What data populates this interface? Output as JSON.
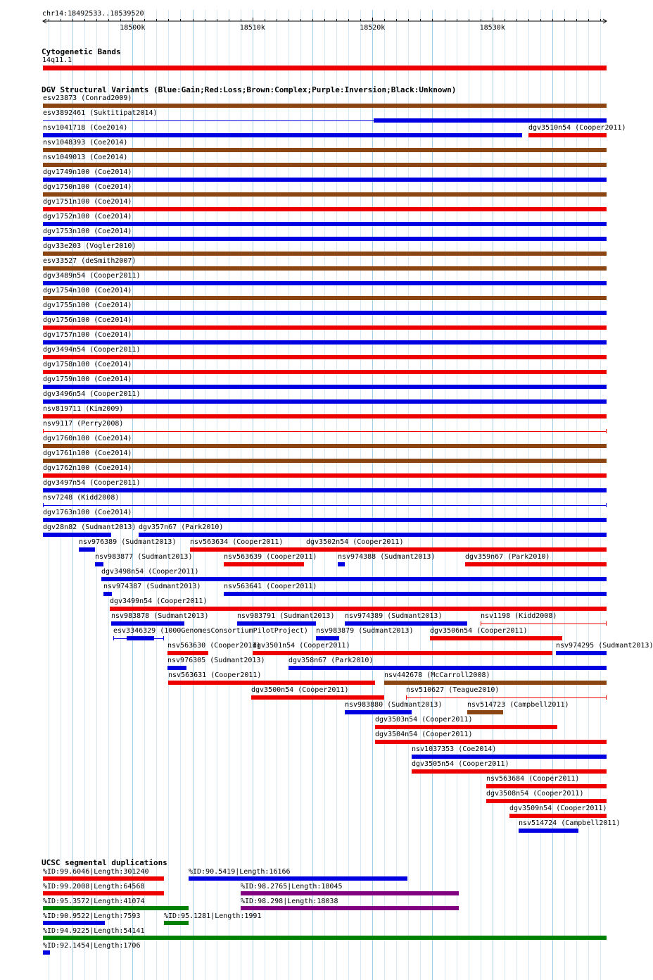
{
  "locus": "chr14:18492533..18539520",
  "ruler": {
    "start": 18492533,
    "end": 18539520,
    "ticks": [
      {
        "pos": 18500000,
        "label": "18500k"
      },
      {
        "pos": 18510000,
        "label": "18510k"
      },
      {
        "pos": 18520000,
        "label": "18520k"
      },
      {
        "pos": 18530000,
        "label": "18530k"
      }
    ]
  },
  "colors": {
    "gain": "#0000e0",
    "loss": "#ee0000",
    "complex": "#8b4513",
    "inversion": "#800080",
    "unknown": "#000000",
    "grid_major": "#a8cfe8",
    "grid_minor": "#d6e9f5",
    "segdup_gray": "#808080",
    "segdup_yellow": "#e0d000",
    "segdup_orange": "#ff8c00",
    "segdup_green": "#008000"
  },
  "tracks": {
    "cytoband": {
      "title": "Cytogenetic Bands",
      "features": [
        {
          "label": "14q11.1",
          "start": 18492533,
          "end": 18539520,
          "color": "loss"
        }
      ]
    },
    "dgv": {
      "title": "DGV Structural Variants (Blue:Gain;Red:Loss;Brown:Complex;Purple:Inversion;Black:Unknown)",
      "features": [
        {
          "label": "esv23873 (Conrad2009)",
          "start": 18492533,
          "end": 18539520,
          "color": "complex"
        },
        {
          "label": "esv3892461 (Suktitipat2014)",
          "start": 18492533,
          "end": 18539520,
          "color": "gain",
          "thick_start": 18520100,
          "thick_end": 18539520
        },
        {
          "label": "nsv1041718 (Coe2014)",
          "start": 18492533,
          "end": 18532500,
          "color": "gain"
        },
        {
          "label": "dgv3510n54 (Cooper2011)",
          "start": 18533000,
          "end": 18539520,
          "color": "loss"
        },
        {
          "label": "nsv1048393 (Coe2014)",
          "start": 18492533,
          "end": 18539520,
          "color": "complex"
        },
        {
          "label": "nsv1049013 (Coe2014)",
          "start": 18492533,
          "end": 18539520,
          "color": "complex"
        },
        {
          "label": "dgv1749n100 (Coe2014)",
          "start": 18492533,
          "end": 18539520,
          "color": "gain"
        },
        {
          "label": "dgv1750n100 (Coe2014)",
          "start": 18492533,
          "end": 18539520,
          "color": "complex"
        },
        {
          "label": "dgv1751n100 (Coe2014)",
          "start": 18492533,
          "end": 18539520,
          "color": "loss"
        },
        {
          "label": "dgv1752n100 (Coe2014)",
          "start": 18492533,
          "end": 18539520,
          "color": "gain"
        },
        {
          "label": "dgv1753n100 (Coe2014)",
          "start": 18492533,
          "end": 18539520,
          "color": "gain"
        },
        {
          "label": "dgv33e203 (Vogler2010)",
          "start": 18492533,
          "end": 18539520,
          "color": "complex"
        },
        {
          "label": "esv33527 (deSmith2007)",
          "start": 18492533,
          "end": 18539520,
          "color": "complex"
        },
        {
          "label": "dgv3489n54 (Cooper2011)",
          "start": 18492533,
          "end": 18539520,
          "color": "gain"
        },
        {
          "label": "dgv1754n100 (Coe2014)",
          "start": 18492533,
          "end": 18539520,
          "color": "complex"
        },
        {
          "label": "dgv1755n100 (Coe2014)",
          "start": 18492533,
          "end": 18539520,
          "color": "gain"
        },
        {
          "label": "dgv1756n100 (Coe2014)",
          "start": 18492533,
          "end": 18539520,
          "color": "loss"
        },
        {
          "label": "dgv1757n100 (Coe2014)",
          "start": 18492533,
          "end": 18539520,
          "color": "gain"
        },
        {
          "label": "dgv3494n54 (Cooper2011)",
          "start": 18492533,
          "end": 18539520,
          "color": "loss"
        },
        {
          "label": "dgv1758n100 (Coe2014)",
          "start": 18492533,
          "end": 18539520,
          "color": "loss"
        },
        {
          "label": "dgv1759n100 (Coe2014)",
          "start": 18492533,
          "end": 18539520,
          "color": "gain"
        },
        {
          "label": "dgv3496n54 (Cooper2011)",
          "start": 18492533,
          "end": 18539520,
          "color": "gain"
        },
        {
          "label": "nsv819711 (Kim2009)",
          "start": 18492533,
          "end": 18539520,
          "color": "loss"
        },
        {
          "label": "nsv9117 (Perry2008)",
          "start": 18492533,
          "end": 18539520,
          "color": "loss",
          "thin": true
        },
        {
          "label": "dgv1760n100 (Coe2014)",
          "start": 18492533,
          "end": 18539520,
          "color": "complex"
        },
        {
          "label": "dgv1761n100 (Coe2014)",
          "start": 18492533,
          "end": 18539520,
          "color": "complex"
        },
        {
          "label": "dgv1762n100 (Coe2014)",
          "start": 18492533,
          "end": 18539520,
          "color": "loss"
        },
        {
          "label": "dgv3497n54 (Cooper2011)",
          "start": 18492533,
          "end": 18539520,
          "color": "gain"
        },
        {
          "label": "nsv7248 (Kidd2008)",
          "start": 18492533,
          "end": 18539520,
          "color": "gain",
          "thin": true
        },
        {
          "label": "dgv1763n100 (Coe2014)",
          "start": 18492533,
          "end": 18539520,
          "color": "gain"
        },
        {
          "label": "dgv28n82 (Sudmant2013)",
          "start": 18492533,
          "end": 18498200,
          "color": "gain"
        },
        {
          "label": "dgv357n67 (Park2010)",
          "start": 18500500,
          "end": 18539520,
          "color": "gain"
        },
        {
          "label": "nsv976389 (Sudmant2013)",
          "start": 18495500,
          "end": 18496900,
          "color": "gain"
        },
        {
          "label": "nsv563634 (Cooper2011)",
          "start": 18504800,
          "end": 18514600,
          "color": "loss"
        },
        {
          "label": "dgv3502n54 (Cooper2011)",
          "start": 18514500,
          "end": 18539520,
          "color": "loss"
        },
        {
          "label": "nsv983877 (Sudmant2013)",
          "start": 18496900,
          "end": 18497600,
          "color": "gain"
        },
        {
          "label": "nsv563639 (Cooper2011)",
          "start": 18507600,
          "end": 18514300,
          "color": "loss"
        },
        {
          "label": "nsv974388 (Sudmant2013)",
          "start": 18517100,
          "end": 18517700,
          "color": "gain"
        },
        {
          "label": "dgv359n67 (Park2010)",
          "start": 18527700,
          "end": 18539520,
          "color": "loss"
        },
        {
          "label": "dgv3498n54 (Cooper2011)",
          "start": 18497400,
          "end": 18539520,
          "color": "gain"
        },
        {
          "label": "nsv974387 (Sudmant2013)",
          "start": 18497600,
          "end": 18498300,
          "color": "gain"
        },
        {
          "label": "nsv563641 (Cooper2011)",
          "start": 18507600,
          "end": 18539520,
          "color": "gain"
        },
        {
          "label": "dgv3499n54 (Cooper2011)",
          "start": 18498100,
          "end": 18539520,
          "color": "loss"
        },
        {
          "label": "nsv983878 (Sudmant2013)",
          "start": 18498200,
          "end": 18504300,
          "color": "gain"
        },
        {
          "label": "nsv983791 (Sudmant2013)",
          "start": 18508700,
          "end": 18515300,
          "color": "gain"
        },
        {
          "label": "nsv974389 (Sudmant2013)",
          "start": 18517700,
          "end": 18527900,
          "color": "gain"
        },
        {
          "label": "nsv1198 (Kidd2008)",
          "start": 18529000,
          "end": 18539520,
          "color": "loss",
          "thin": true
        },
        {
          "label": "esv3346329 (1000GenomesConsortiumPilotProject)",
          "start": 18498400,
          "end": 18502600,
          "color": "gain",
          "thin": true,
          "thick_start": 18499500,
          "thick_end": 18501800
        },
        {
          "label": "nsv983879 (Sudmant2013)",
          "start": 18515300,
          "end": 18517200,
          "color": "gain"
        },
        {
          "label": "dgv3506n54 (Cooper2011)",
          "start": 18524800,
          "end": 18535800,
          "color": "loss"
        },
        {
          "label": "nsv563630 (Cooper2011)",
          "start": 18502900,
          "end": 18506300,
          "color": "loss"
        },
        {
          "label": "dgv3501n54 (Cooper2011)",
          "start": 18510000,
          "end": 18535000,
          "color": "loss"
        },
        {
          "label": "nsv974295 (Sudmant2013)",
          "start": 18535300,
          "end": 18539520,
          "color": "gain"
        },
        {
          "label": "nsv976305 (Sudmant2013)",
          "start": 18502900,
          "end": 18504500,
          "color": "gain"
        },
        {
          "label": "dgv358n67 (Park2010)",
          "start": 18513000,
          "end": 18539520,
          "color": "gain"
        },
        {
          "label": "nsv563631 (Cooper2011)",
          "start": 18503000,
          "end": 18520200,
          "color": "loss"
        },
        {
          "label": "nsv442678 (McCarroll2008)",
          "start": 18521000,
          "end": 18539520,
          "color": "complex"
        },
        {
          "label": "dgv3500n54 (Cooper2011)",
          "start": 18509900,
          "end": 18521000,
          "color": "loss"
        },
        {
          "label": "nsv510627 (Teague2010)",
          "start": 18522800,
          "end": 18539520,
          "color": "loss",
          "thin": true
        },
        {
          "label": "nsv983880 (Sudmant2013)",
          "start": 18517700,
          "end": 18523300,
          "color": "gain"
        },
        {
          "label": "nsv514723 (Campbell2011)",
          "start": 18527900,
          "end": 18530900,
          "color": "complex"
        },
        {
          "label": "dgv3503n54 (Cooper2011)",
          "start": 18520200,
          "end": 18535400,
          "color": "loss"
        },
        {
          "label": "dgv3504n54 (Cooper2011)",
          "start": 18520200,
          "end": 18539520,
          "color": "loss"
        },
        {
          "label": "nsv1037353 (Coe2014)",
          "start": 18523300,
          "end": 18539520,
          "color": "gain"
        },
        {
          "label": "dgv3505n54 (Cooper2011)",
          "start": 18523300,
          "end": 18539520,
          "color": "loss"
        },
        {
          "label": "nsv563684 (Cooper2011)",
          "start": 18529500,
          "end": 18539520,
          "color": "loss"
        },
        {
          "label": "dgv3508n54 (Cooper2011)",
          "start": 18529500,
          "end": 18539520,
          "color": "loss"
        },
        {
          "label": "dgv3509n54 (Cooper2011)",
          "start": 18531400,
          "end": 18539520,
          "color": "loss"
        },
        {
          "label": "nsv514724 (Campbell2011)",
          "start": 18532200,
          "end": 18537200,
          "color": "gain"
        }
      ]
    },
    "segdups": {
      "title": "UCSC segmental duplications",
      "features": [
        {
          "label": "%ID:99.6046|Length:301240",
          "start": 18492533,
          "end": 18502600,
          "color": "loss"
        },
        {
          "label": "%ID:90.5419|Length:16166",
          "start": 18504700,
          "end": 18522900,
          "color": "gain"
        },
        {
          "label": "%ID:99.2008|Length:64568",
          "start": 18492533,
          "end": 18502600,
          "color": "loss"
        },
        {
          "label": "%ID:98.2765|Length:18045",
          "start": 18509000,
          "end": 18527200,
          "color": "inversion"
        },
        {
          "label": "%ID:95.3572|Length:41074",
          "start": 18492533,
          "end": 18504700,
          "color": "segdup_green"
        },
        {
          "label": "%ID:98.298|Length:18038",
          "start": 18509000,
          "end": 18527200,
          "color": "inversion"
        },
        {
          "label": "%ID:90.9522|Length:7593",
          "start": 18492533,
          "end": 18497700,
          "color": "gain"
        },
        {
          "label": "%ID:95.1281|Length:1991",
          "start": 18502600,
          "end": 18504700,
          "color": "segdup_green"
        },
        {
          "label": "%ID:94.9225|Length:54141",
          "start": 18492533,
          "end": 18539520,
          "color": "segdup_green"
        },
        {
          "label": "%ID:92.1454|Length:1706",
          "start": 18492533,
          "end": 18493100,
          "color": "gain"
        }
      ]
    }
  }
}
